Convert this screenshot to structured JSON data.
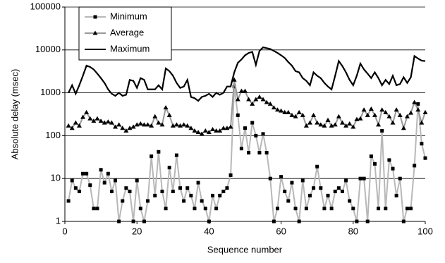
{
  "chart_data": {
    "type": "line",
    "y_label": "Absolute delay (msec)",
    "x_label": "Sequence number",
    "log_y": true,
    "grid": true,
    "legend": "top-left",
    "xlim": [
      0,
      100
    ],
    "xticks": [
      0,
      20,
      40,
      60,
      80,
      100
    ],
    "ylim": [
      1,
      100000
    ],
    "yticks": [
      1,
      10,
      100,
      1000,
      10000,
      100000
    ],
    "x": [
      1,
      2,
      3,
      4,
      5,
      6,
      7,
      8,
      9,
      10,
      11,
      12,
      13,
      14,
      15,
      16,
      17,
      18,
      19,
      20,
      21,
      22,
      23,
      24,
      25,
      26,
      27,
      28,
      29,
      30,
      31,
      32,
      33,
      34,
      35,
      36,
      37,
      38,
      39,
      40,
      41,
      42,
      43,
      44,
      45,
      46,
      47,
      48,
      49,
      50,
      51,
      52,
      53,
      54,
      55,
      56,
      57,
      58,
      59,
      60,
      61,
      62,
      63,
      64,
      65,
      66,
      67,
      68,
      69,
      70,
      71,
      72,
      73,
      74,
      75,
      76,
      77,
      78,
      79,
      80,
      81,
      82,
      83,
      84,
      85,
      86,
      87,
      88,
      89,
      90,
      91,
      92,
      93,
      94,
      95,
      96,
      97,
      98,
      99,
      100
    ],
    "series": [
      {
        "name": "Minimum",
        "color": "#b8b8b8",
        "marker": "square",
        "marker_color": "#000000",
        "values": [
          3,
          9,
          6,
          5,
          13,
          13,
          7,
          2,
          2,
          16,
          8,
          13,
          5,
          9,
          1,
          3,
          6,
          5,
          1,
          9,
          2,
          1,
          3,
          33,
          4,
          42,
          5,
          2,
          18,
          5,
          35,
          6,
          3,
          6,
          4,
          2,
          8,
          3,
          2,
          1,
          4,
          2,
          4,
          5,
          6,
          12,
          1400,
          300,
          50,
          150,
          40,
          200,
          100,
          40,
          110,
          40,
          10,
          1,
          2,
          11,
          5,
          3,
          8,
          2,
          1,
          9,
          2,
          4,
          6,
          19,
          6,
          2,
          4,
          2,
          5,
          6,
          5,
          9,
          3,
          2,
          1,
          10,
          10,
          1,
          33,
          22,
          2,
          130,
          2,
          27,
          17,
          4,
          10,
          1,
          2,
          2,
          20,
          550,
          65,
          30
        ]
      },
      {
        "name": "Average",
        "color": "#999999",
        "marker": "triangle",
        "marker_color": "#000000",
        "values": [
          170,
          150,
          200,
          170,
          270,
          350,
          250,
          220,
          250,
          220,
          200,
          210,
          200,
          160,
          180,
          150,
          130,
          150,
          160,
          180,
          190,
          180,
          180,
          170,
          280,
          200,
          180,
          450,
          300,
          170,
          180,
          170,
          180,
          170,
          150,
          130,
          120,
          110,
          130,
          120,
          140,
          130,
          130,
          150,
          150,
          160,
          2000,
          700,
          1100,
          1100,
          700,
          550,
          700,
          800,
          700,
          600,
          550,
          450,
          400,
          380,
          350,
          350,
          300,
          280,
          350,
          300,
          170,
          200,
          300,
          200,
          180,
          170,
          230,
          170,
          180,
          280,
          200,
          170,
          190,
          160,
          240,
          250,
          400,
          300,
          420,
          300,
          180,
          400,
          350,
          280,
          200,
          400,
          300,
          150,
          280,
          340,
          600,
          400,
          200,
          350
        ]
      },
      {
        "name": "Maximum",
        "color": "#000000",
        "values": [
          1000,
          1500,
          950,
          1500,
          2500,
          4300,
          4000,
          3500,
          2800,
          2200,
          1700,
          1200,
          950,
          850,
          1000,
          850,
          900,
          2000,
          1900,
          1300,
          2200,
          2000,
          1200,
          1200,
          1200,
          1500,
          1200,
          3700,
          3200,
          2500,
          1700,
          1300,
          1400,
          2000,
          800,
          750,
          650,
          800,
          850,
          950,
          800,
          1000,
          900,
          1000,
          1400,
          1400,
          3000,
          5000,
          6000,
          7500,
          8500,
          9000,
          4500,
          9500,
          11500,
          11000,
          10500,
          9500,
          8500,
          7500,
          6500,
          5200,
          4300,
          3200,
          3000,
          2200,
          1900,
          1500,
          3000,
          2500,
          2200,
          1700,
          1400,
          1200,
          2500,
          5500,
          4200,
          3000,
          2000,
          1500,
          2500,
          4800,
          3500,
          2800,
          2200,
          3000,
          2200,
          1500,
          2000,
          1600,
          2500,
          1500,
          1600,
          2300,
          1700,
          2300,
          7200,
          6300,
          5600,
          5500
        ]
      }
    ]
  }
}
